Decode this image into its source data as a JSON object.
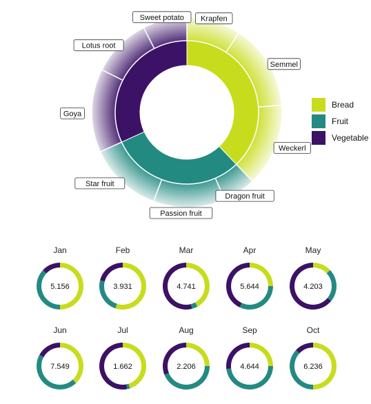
{
  "colors": {
    "Bread": "#c8dc1e",
    "Fruit": "#238a82",
    "Vegetable": "#3b1266"
  },
  "chart_data": [
    {
      "type": "pie",
      "subtype": "sunburst-donut",
      "legend": {
        "placement": "right",
        "entries": [
          "Bread",
          "Fruit",
          "Vegetable"
        ]
      },
      "inner": [
        {
          "name": "Bread",
          "value": 37.9
        },
        {
          "name": "Fruit",
          "value": 30.3
        },
        {
          "name": "Vegetable",
          "value": 31.8
        }
      ],
      "outer": [
        {
          "name": "Krapfen",
          "group": "Bread",
          "value": 9.2
        },
        {
          "name": "Semmel",
          "group": "Bread",
          "value": 14.6
        },
        {
          "name": "Weckerl",
          "group": "Bread",
          "value": 14.1
        },
        {
          "name": "Dragon fruit",
          "group": "Fruit",
          "value": 5.6
        },
        {
          "name": "Passion fruit",
          "group": "Fruit",
          "value": 12.2
        },
        {
          "name": "Star fruit",
          "group": "Fruit",
          "value": 12.5
        },
        {
          "name": "Goya",
          "group": "Vegetable",
          "value": 14.2
        },
        {
          "name": "Lotus root",
          "group": "Vegetable",
          "value": 10.1
        },
        {
          "name": "Sweet potato",
          "group": "Vegetable",
          "value": 7.5
        }
      ]
    },
    {
      "type": "pie",
      "subtype": "small-multiple-donuts",
      "categories": [
        "Bread",
        "Fruit",
        "Vegetable"
      ],
      "panels": [
        {
          "month": "Jan",
          "total": "5.156",
          "shares": [
            50,
            37,
            13
          ]
        },
        {
          "month": "Feb",
          "total": "3.931",
          "shares": [
            55,
            24,
            21
          ]
        },
        {
          "month": "Mar",
          "total": "4.741",
          "shares": [
            42,
            4,
            54
          ]
        },
        {
          "month": "Apr",
          "total": "5.644",
          "shares": [
            25,
            32,
            43
          ]
        },
        {
          "month": "May",
          "total": "4.203",
          "shares": [
            13,
            23,
            64
          ]
        },
        {
          "month": "Jun",
          "total": "7.549",
          "shares": [
            38,
            45,
            17
          ]
        },
        {
          "month": "Jul",
          "total": "1.662",
          "shares": [
            45,
            2,
            53
          ]
        },
        {
          "month": "Aug",
          "total": "2.206",
          "shares": [
            25,
            44,
            31
          ]
        },
        {
          "month": "Sep",
          "total": "4.644",
          "shares": [
            25,
            48,
            27
          ]
        },
        {
          "month": "Oct",
          "total": "6.236",
          "shares": [
            50,
            37,
            13
          ]
        }
      ]
    }
  ]
}
